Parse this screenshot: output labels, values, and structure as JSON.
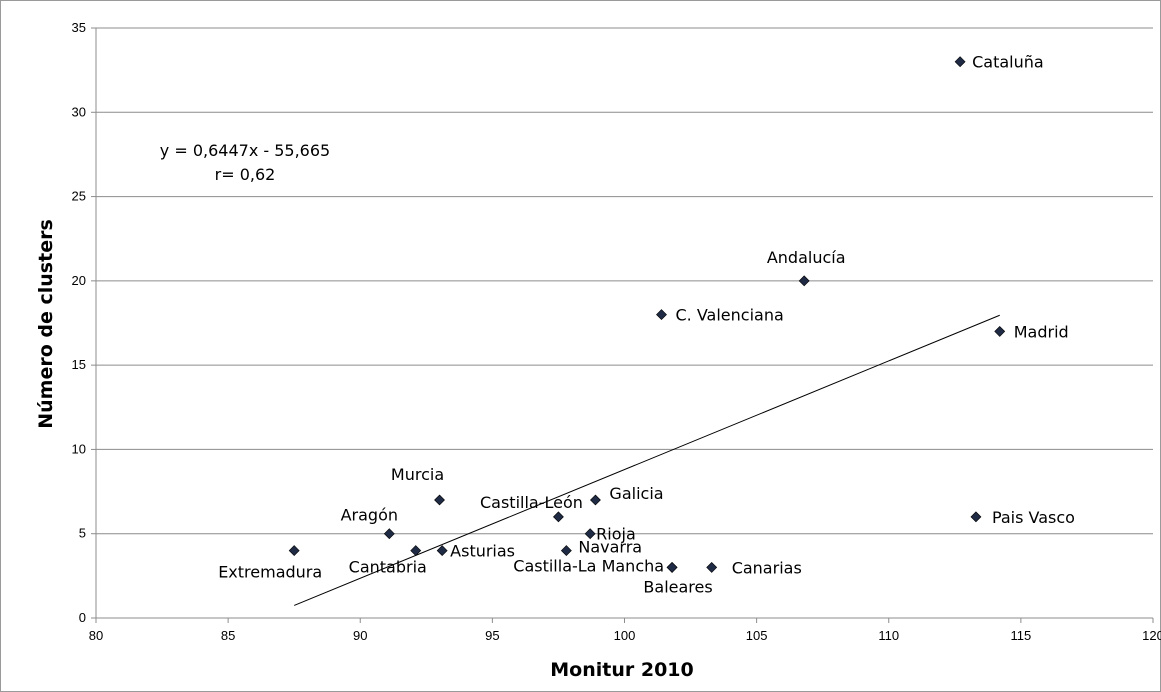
{
  "chart_data": {
    "type": "scatter",
    "xlabel": "Monitur 2010",
    "ylabel": "Número de clusters",
    "xlim": [
      80,
      120
    ],
    "ylim": [
      0,
      35
    ],
    "xticks": [
      "80",
      "85",
      "90",
      "95",
      "100",
      "105",
      "110",
      "115",
      "120"
    ],
    "yticks": [
      "0",
      "5",
      "10",
      "15",
      "20",
      "25",
      "30",
      "35"
    ],
    "grid": "horizontal",
    "marker": "diamond",
    "marker_color": "#1f2a44",
    "points": [
      {
        "label": "Cataluña",
        "x": 112.7,
        "y": 33
      },
      {
        "label": "Andalucía",
        "x": 106.8,
        "y": 20
      },
      {
        "label": "C. Valenciana",
        "x": 101.4,
        "y": 18
      },
      {
        "label": "Madrid",
        "x": 114.2,
        "y": 17
      },
      {
        "label": "Murcia",
        "x": 93.0,
        "y": 7
      },
      {
        "label": "Galicia",
        "x": 98.9,
        "y": 7
      },
      {
        "label": "Pais Vasco",
        "x": 113.3,
        "y": 6
      },
      {
        "label": "Castilla-León",
        "x": 97.5,
        "y": 6
      },
      {
        "label": "Aragón",
        "x": 91.1,
        "y": 5
      },
      {
        "label": "Rioja",
        "x": 98.7,
        "y": 5
      },
      {
        "label": "Extremadura",
        "x": 87.5,
        "y": 4
      },
      {
        "label": "Cantabria",
        "x": 92.1,
        "y": 4
      },
      {
        "label": "Asturias",
        "x": 93.1,
        "y": 4
      },
      {
        "label": "Navarra",
        "x": 97.8,
        "y": 4
      },
      {
        "label": "Castilla-La Mancha",
        "x": 101.8,
        "y": 3
      },
      {
        "label": "Baleares",
        "x": 101.8,
        "y": 3
      },
      {
        "label": "Canarias",
        "x": 103.3,
        "y": 3
      }
    ],
    "trendline": {
      "slope": 0.6447,
      "intercept": -55.665,
      "x_range": [
        87.5,
        114.2
      ]
    },
    "annotations": {
      "equation": "y = 0,6447x - 55,665",
      "r": "r= 0,62"
    }
  }
}
